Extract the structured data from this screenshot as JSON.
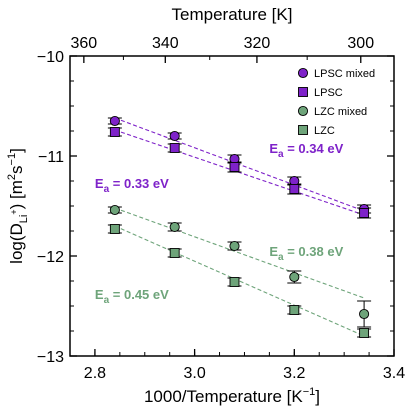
{
  "chart_data": {
    "type": "scatter",
    "xlabel_parts": {
      "main": "1000/Temperature [K",
      "sup": "−1",
      "close": "]"
    },
    "ylabel_parts": {
      "a": "log(D",
      "sub": "Li",
      "subsup": "+",
      "b": ") [m",
      "sup1": "2",
      "c": "s",
      "sup2": "−1",
      "d": "]"
    },
    "top_xlabel": "Temperature [K]",
    "xlim": [
      2.75,
      3.4
    ],
    "ylim": [
      -13,
      -10
    ],
    "xticks": [
      {
        "v": 2.8,
        "label": "2.8"
      },
      {
        "v": 3.0,
        "label": "3.0"
      },
      {
        "v": 3.2,
        "label": "3.2"
      },
      {
        "v": 3.4,
        "label": "3.4"
      }
    ],
    "yticks": [
      {
        "v": -10,
        "label": "−10"
      },
      {
        "v": -11,
        "label": "−11"
      },
      {
        "v": -12,
        "label": "−12"
      },
      {
        "v": -13,
        "label": "−13"
      }
    ],
    "top_ticks": [
      {
        "t": 360,
        "label": "360"
      },
      {
        "t": 340,
        "label": "340"
      },
      {
        "t": 320,
        "label": "320"
      },
      {
        "t": 300,
        "label": "300"
      }
    ],
    "top_minor_ticks": [
      350,
      330,
      310
    ],
    "legend_position": "top-right",
    "series": [
      {
        "name": "LPSC mixed",
        "marker": "circle",
        "color": "#7e22c9",
        "edge": "#000000",
        "x": [
          2.84,
          2.96,
          3.08,
          3.2,
          3.34
        ],
        "y": [
          -10.65,
          -10.8,
          -11.03,
          -11.25,
          -11.53
        ],
        "err": [
          0.03,
          0.03,
          0.04,
          0.04,
          0.04
        ],
        "fit": {
          "x": [
            2.84,
            3.34
          ],
          "y": [
            -10.62,
            -11.55
          ]
        }
      },
      {
        "name": "LPSC",
        "marker": "square",
        "color": "#7e22c9",
        "edge": "#000000",
        "x": [
          2.84,
          2.96,
          3.08,
          3.2,
          3.34
        ],
        "y": [
          -10.76,
          -10.92,
          -11.11,
          -11.33,
          -11.57
        ],
        "err": [
          0.04,
          0.04,
          0.05,
          0.05,
          0.05
        ],
        "fit": {
          "x": [
            2.84,
            3.34
          ],
          "y": [
            -10.74,
            -11.59
          ]
        }
      },
      {
        "name": "LZC mixed",
        "marker": "circle",
        "color": "#6ea47a",
        "edge": "#000000",
        "x": [
          2.84,
          2.96,
          3.08,
          3.2,
          3.34
        ],
        "y": [
          -11.54,
          -11.71,
          -11.9,
          -12.21,
          -12.58
        ],
        "err": [
          0.03,
          0.04,
          0.04,
          0.06,
          0.13
        ],
        "fit": {
          "x": [
            2.84,
            3.34
          ],
          "y": [
            -11.52,
            -12.42
          ]
        }
      },
      {
        "name": "LZC",
        "marker": "square",
        "color": "#6ea47a",
        "edge": "#000000",
        "x": [
          2.84,
          2.96,
          3.08,
          3.2,
          3.34
        ],
        "y": [
          -11.73,
          -11.97,
          -12.26,
          -12.54,
          -12.77
        ],
        "err": [
          0.04,
          0.04,
          0.04,
          0.04,
          0.04
        ],
        "fit": {
          "x": [
            2.84,
            3.34
          ],
          "y": [
            -11.7,
            -12.8
          ]
        }
      }
    ],
    "annotations": [
      {
        "base": "E",
        "sub": "a",
        "text": " = 0.34 eV",
        "color": "#7e22c9",
        "x": 3.15,
        "y": -10.97
      },
      {
        "base": "E",
        "sub": "a",
        "text": " = 0.33 eV",
        "color": "#7e22c9",
        "x": 2.8,
        "y": -11.32
      },
      {
        "base": "E",
        "sub": "a",
        "text": " = 0.38 eV",
        "color": "#6ea47a",
        "x": 3.15,
        "y": -12.0
      },
      {
        "base": "E",
        "sub": "a",
        "text": " = 0.45 eV",
        "color": "#6ea47a",
        "x": 2.8,
        "y": -12.43
      }
    ]
  }
}
